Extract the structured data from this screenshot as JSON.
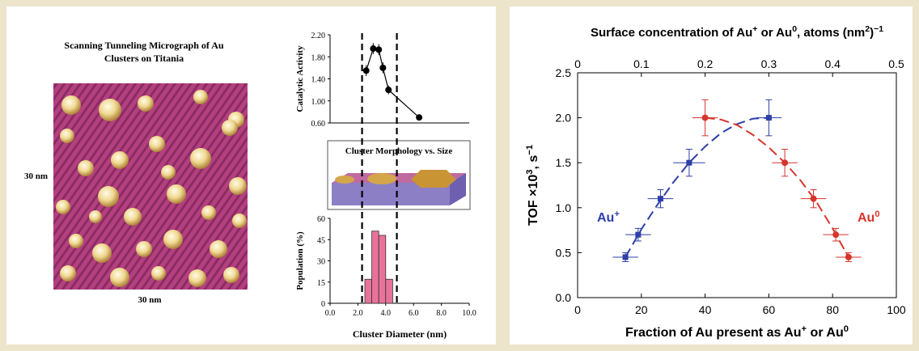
{
  "colors": {
    "background": "#ede4cc",
    "au_plus": "#2e3fa8",
    "au_zero": "#d7342c",
    "bar": "#e8739a",
    "stm_bg": "#b5407f",
    "cluster": "#f0d890"
  },
  "micrograph": {
    "title_line1": "Scanning Tunneling Micrograph of Au",
    "title_line2": "Clusters on Titania",
    "side_label": "30 nm",
    "bottom_label": "30 nm"
  },
  "morphology": {
    "title": "Cluster Morphology vs. Size"
  },
  "chart_data": [
    {
      "type": "line",
      "name": "catalytic-activity",
      "ylabel": "Catalytic Activity",
      "ylim": [
        0.6,
        2.2
      ],
      "yticks": [
        "0.60",
        "1.00",
        "1.40",
        "1.80",
        "2.20"
      ],
      "xlim": [
        0,
        10
      ],
      "points": [
        {
          "x": 2.6,
          "y": 1.55,
          "err": 0.1
        },
        {
          "x": 3.1,
          "y": 1.95,
          "err": 0.1
        },
        {
          "x": 3.5,
          "y": 1.93,
          "err": 0.1
        },
        {
          "x": 3.8,
          "y": 1.6,
          "err": 0.1
        },
        {
          "x": 4.2,
          "y": 1.2,
          "err": 0.08
        },
        {
          "x": 6.4,
          "y": 0.7,
          "err": 0.05
        }
      ],
      "dashed_x": [
        2.3,
        4.8
      ]
    },
    {
      "type": "bar",
      "name": "population",
      "ylabel": "Population (%)",
      "xlabel": "Cluster Diameter (nm)",
      "ylim": [
        0,
        60
      ],
      "yticks": [
        "0",
        "15",
        "30",
        "45",
        "60"
      ],
      "xlim": [
        0,
        10
      ],
      "xticks": [
        "0.0",
        "2.0",
        "4.0",
        "6.0",
        "8.0",
        "10.0"
      ],
      "bin_edges": [
        2.5,
        3.0,
        3.5,
        4.0,
        4.5
      ],
      "values": [
        17,
        51,
        48,
        17
      ],
      "dashed_x": [
        2.3,
        4.8
      ]
    },
    {
      "type": "scatter",
      "name": "tof-vs-fraction",
      "xlabel": "Fraction of Au present as Au",
      "xlabel_sup": "+",
      "xlabel_tail": " or Au",
      "xlabel_sup2": "0",
      "ylabel_main": "TOF ×10",
      "ylabel_sup": "3",
      "ylabel_tail": ", s",
      "ylabel_sup2": "−1",
      "top_label": "Surface concentration of Au",
      "top_label_sup": "+",
      "top_label_mid": " or Au",
      "top_label_sup2": "0",
      "top_label_tail": ", atoms (nm",
      "top_label_sup3": "2",
      "top_label_end": ")",
      "top_label_sup4": "−1",
      "xlim": [
        0,
        100
      ],
      "xticks": [
        "0",
        "20",
        "40",
        "60",
        "80",
        "100"
      ],
      "ylim": [
        0,
        2.5
      ],
      "yticks": [
        "0.0",
        "0.5",
        "1.0",
        "1.5",
        "2.0",
        "2.5"
      ],
      "top_xlim": [
        0,
        0.5
      ],
      "top_xticks": [
        "0",
        "0.1",
        "0.2",
        "0.3",
        "0.4",
        "0.5"
      ],
      "series": [
        {
          "name": "Au",
          "name_sup": "+",
          "color": "#2e3fa8",
          "points": [
            {
              "x": 15,
              "y": 0.45,
              "xerr": 4,
              "yerr": 0.05
            },
            {
              "x": 19,
              "y": 0.7,
              "xerr": 4,
              "yerr": 0.07
            },
            {
              "x": 26,
              "y": 1.1,
              "xerr": 4,
              "yerr": 0.1
            },
            {
              "x": 35,
              "y": 1.5,
              "xerr": 5,
              "yerr": 0.15
            },
            {
              "x": 60,
              "y": 2.0,
              "xerr": 4,
              "yerr": 0.2
            }
          ],
          "curve": [
            [
              15,
              0.45
            ],
            [
              20,
              0.76
            ],
            [
              25,
              1.03
            ],
            [
              30,
              1.28
            ],
            [
              35,
              1.5
            ],
            [
              40,
              1.68
            ],
            [
              45,
              1.83
            ],
            [
              50,
              1.93
            ],
            [
              55,
              1.99
            ],
            [
              60,
              2.0
            ]
          ]
        },
        {
          "name": "Au",
          "name_sup": "0",
          "color": "#d7342c",
          "points": [
            {
              "x": 40,
              "y": 2.0,
              "xerr": 4,
              "yerr": 0.2
            },
            {
              "x": 65,
              "y": 1.5,
              "xerr": 4,
              "yerr": 0.15
            },
            {
              "x": 74,
              "y": 1.1,
              "xerr": 4,
              "yerr": 0.1
            },
            {
              "x": 81,
              "y": 0.7,
              "xerr": 4,
              "yerr": 0.07
            },
            {
              "x": 85,
              "y": 0.45,
              "xerr": 4,
              "yerr": 0.05
            }
          ],
          "curve": [
            [
              40,
              2.0
            ],
            [
              45,
              1.98
            ],
            [
              50,
              1.92
            ],
            [
              55,
              1.81
            ],
            [
              60,
              1.67
            ],
            [
              65,
              1.5
            ],
            [
              70,
              1.3
            ],
            [
              75,
              1.06
            ],
            [
              80,
              0.77
            ],
            [
              85,
              0.45
            ]
          ]
        }
      ]
    }
  ]
}
